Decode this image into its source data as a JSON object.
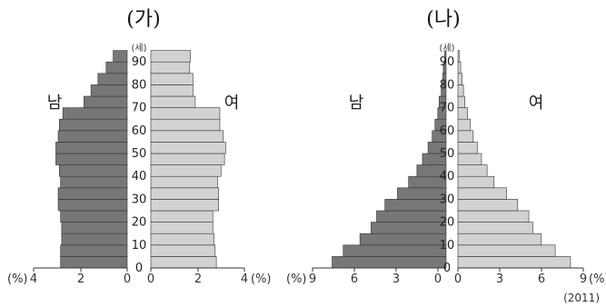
{
  "chart_data": [
    {
      "type": "bar",
      "title": "(가)",
      "age_unit": "(세)",
      "age_ticks": [
        "0",
        "10",
        "20",
        "30",
        "40",
        "50",
        "60",
        "70",
        "80",
        "90"
      ],
      "age_groups": [
        0,
        5,
        10,
        15,
        20,
        25,
        30,
        35,
        40,
        45,
        50,
        55,
        60,
        65,
        70,
        75,
        80,
        85,
        90
      ],
      "x_ticks_left": [
        "4",
        "2",
        "0"
      ],
      "x_ticks_right": [
        "0",
        "2",
        "4"
      ],
      "x_unit": "(%)",
      "xlim": [
        0,
        4
      ],
      "series": [
        {
          "name": "남",
          "values": [
            2.85,
            2.85,
            2.8,
            2.8,
            2.85,
            2.95,
            2.95,
            2.85,
            2.9,
            3.05,
            3.05,
            2.95,
            2.9,
            2.75,
            1.85,
            1.55,
            1.25,
            0.9,
            0.6
          ]
        },
        {
          "name": "여",
          "values": [
            2.8,
            2.75,
            2.7,
            2.65,
            2.65,
            2.9,
            2.9,
            2.85,
            3.0,
            3.15,
            3.2,
            3.1,
            2.95,
            2.95,
            1.9,
            1.8,
            1.8,
            1.65,
            1.7
          ]
        }
      ]
    },
    {
      "type": "bar",
      "title": "(나)",
      "age_unit": "(세)",
      "age_ticks": [
        "0",
        "10",
        "20",
        "30",
        "40",
        "50",
        "60",
        "70",
        "80",
        "90"
      ],
      "age_groups": [
        0,
        5,
        10,
        15,
        20,
        25,
        30,
        35,
        40,
        45,
        50,
        55,
        60,
        65,
        70,
        75,
        80,
        85,
        90
      ],
      "x_ticks_left": [
        "9",
        "6",
        "3",
        "0"
      ],
      "x_ticks_right": [
        "0",
        "3",
        "6",
        "9"
      ],
      "x_unit": "(%)",
      "xlim": [
        0,
        9
      ],
      "series": [
        {
          "name": "남",
          "values": [
            8.2,
            7.4,
            6.2,
            5.4,
            5.0,
            4.4,
            3.5,
            2.7,
            2.1,
            1.7,
            1.3,
            1.0,
            0.8,
            0.6,
            0.5,
            0.35,
            0.25,
            0.2,
            0.1
          ]
        },
        {
          "name": "여",
          "values": [
            8.1,
            7.0,
            6.0,
            5.4,
            5.1,
            4.3,
            3.5,
            2.6,
            2.1,
            1.7,
            1.4,
            1.1,
            0.9,
            0.7,
            0.5,
            0.4,
            0.3,
            0.2,
            0.1
          ]
        }
      ],
      "footnote": "(2011)"
    }
  ]
}
